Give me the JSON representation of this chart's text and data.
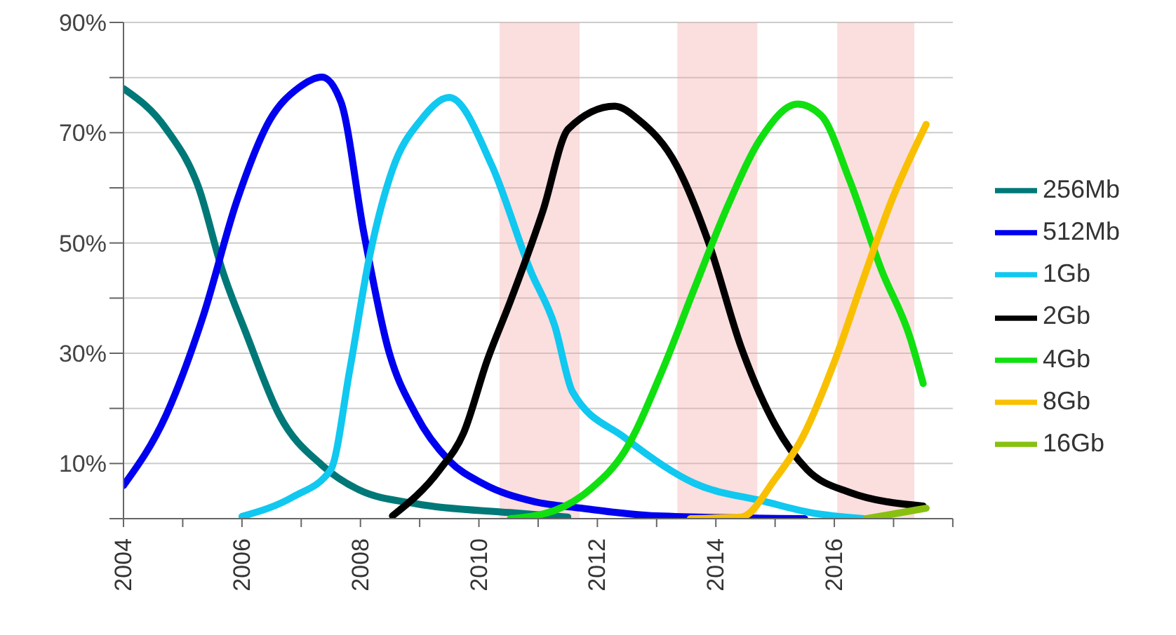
{
  "chart_data": {
    "type": "line",
    "xlim": [
      2004,
      2018
    ],
    "xticks": [
      2004,
      {
        "value": 2005,
        "label": null
      },
      2006,
      {
        "value": 2007,
        "label": null
      },
      2008,
      {
        "value": 2009,
        "label": null
      },
      2010,
      {
        "value": 2011,
        "label": null
      },
      2012,
      {
        "value": 2013,
        "label": null
      },
      2014,
      {
        "value": 2015,
        "label": null
      },
      2016,
      {
        "value": 2017,
        "label": null
      },
      {
        "value": 2018,
        "label": null
      }
    ],
    "ylim": [
      0,
      90
    ],
    "yticks": [
      {
        "value": 0,
        "label": null
      },
      {
        "value": 10,
        "label": "10%"
      },
      {
        "value": 20,
        "label": null
      },
      {
        "value": 30,
        "label": "30%"
      },
      {
        "value": 40,
        "label": null
      },
      {
        "value": 50,
        "label": "50%"
      },
      {
        "value": 60,
        "label": null
      },
      {
        "value": 70,
        "label": "70%"
      },
      {
        "value": 80,
        "label": null
      },
      {
        "value": 90,
        "label": "90%"
      }
    ],
    "grid": "y",
    "legend": "right",
    "bands": [
      {
        "axis": "x",
        "from": 2010.35,
        "to": 2011.7,
        "color": "#f4a0a0"
      },
      {
        "axis": "x",
        "from": 2013.35,
        "to": 2014.7,
        "color": "#f4a0a0"
      },
      {
        "axis": "x",
        "from": 2016.05,
        "to": 2017.35,
        "color": "#f4a0a0"
      }
    ],
    "series": [
      {
        "name": "256Mb",
        "color": "#007878",
        "x": [
          2004,
          2004.72,
          2005.27,
          2005.67,
          2006.07,
          2006.63,
          2007.35,
          2007.98,
          2008.94,
          2010.53,
          2011.5
        ],
        "values": [
          78,
          70.7,
          60,
          45,
          33.6,
          18.8,
          9.7,
          5.2,
          2.7,
          1.1,
          0.3
        ]
      },
      {
        "name": "512Mb",
        "color": "#0000f0",
        "x": [
          2004,
          2004.72,
          2005.35,
          2005.91,
          2006.47,
          2006.95,
          2007.35,
          2007.67,
          2008.06,
          2008.46,
          2008.94,
          2009.5,
          2010.06,
          2010.93,
          2011.73,
          2013,
          2015.5
        ],
        "values": [
          6,
          18.8,
          36.9,
          57.5,
          72.3,
          78.1,
          80.1,
          75.6,
          51.7,
          31.1,
          18.8,
          10.5,
          6.4,
          3.1,
          1.9,
          0.5,
          0
        ]
      },
      {
        "name": "1Gb",
        "color": "#10c8f0",
        "x": [
          2006,
          2006.87,
          2007.5,
          2007.82,
          2008.14,
          2008.54,
          2009.02,
          2009.5,
          2010.22,
          2010.87,
          2011.28,
          2011.58,
          2012.46,
          2013.64,
          2014.83,
          2015.6,
          2016.5
        ],
        "values": [
          0.4,
          4,
          8.9,
          27,
          46.8,
          63.3,
          72.3,
          76.4,
          64,
          45,
          35,
          23,
          14.7,
          6.4,
          3.1,
          1.1,
          0
        ]
      },
      {
        "name": "2Gb",
        "color": "#000000",
        "x": [
          2008.54,
          2009.34,
          2009.74,
          2010.14,
          2010.53,
          2011.08,
          2011.51,
          2012.29,
          2012.7,
          2013.34,
          2013.88,
          2014.43,
          2015,
          2015.54,
          2016.25,
          2017.5
        ],
        "values": [
          0.5,
          8.9,
          15.5,
          28.7,
          39.4,
          55.8,
          70.7,
          74.8,
          72.3,
          64,
          50,
          31,
          17,
          8.9,
          4.8,
          2.3
        ]
      },
      {
        "name": "4Gb",
        "color": "#10e010",
        "x": [
          2010.53,
          2011.28,
          2011.91,
          2012.46,
          2013.1,
          2013.64,
          2014.2,
          2014.76,
          2015.38,
          2015.78,
          2016.25,
          2016.8,
          2017.28,
          2017.5
        ],
        "values": [
          0,
          1.5,
          5.6,
          12.2,
          27,
          41.8,
          56.7,
          69,
          75.2,
          73.1,
          61.6,
          45,
          32.8,
          24.5
        ]
      },
      {
        "name": "8Gb",
        "color": "#f8c000",
        "x": [
          2013.57,
          2014.43,
          2015,
          2015.46,
          2016.01,
          2016.49,
          2016.96,
          2017.55
        ],
        "values": [
          0,
          0.3,
          7.2,
          14.7,
          28.7,
          43.5,
          57.5,
          71.5
        ]
      },
      {
        "name": "16Gb",
        "color": "#88c010",
        "x": [
          2016.54,
          2017.55
        ],
        "values": [
          0,
          1.9
        ]
      }
    ]
  }
}
